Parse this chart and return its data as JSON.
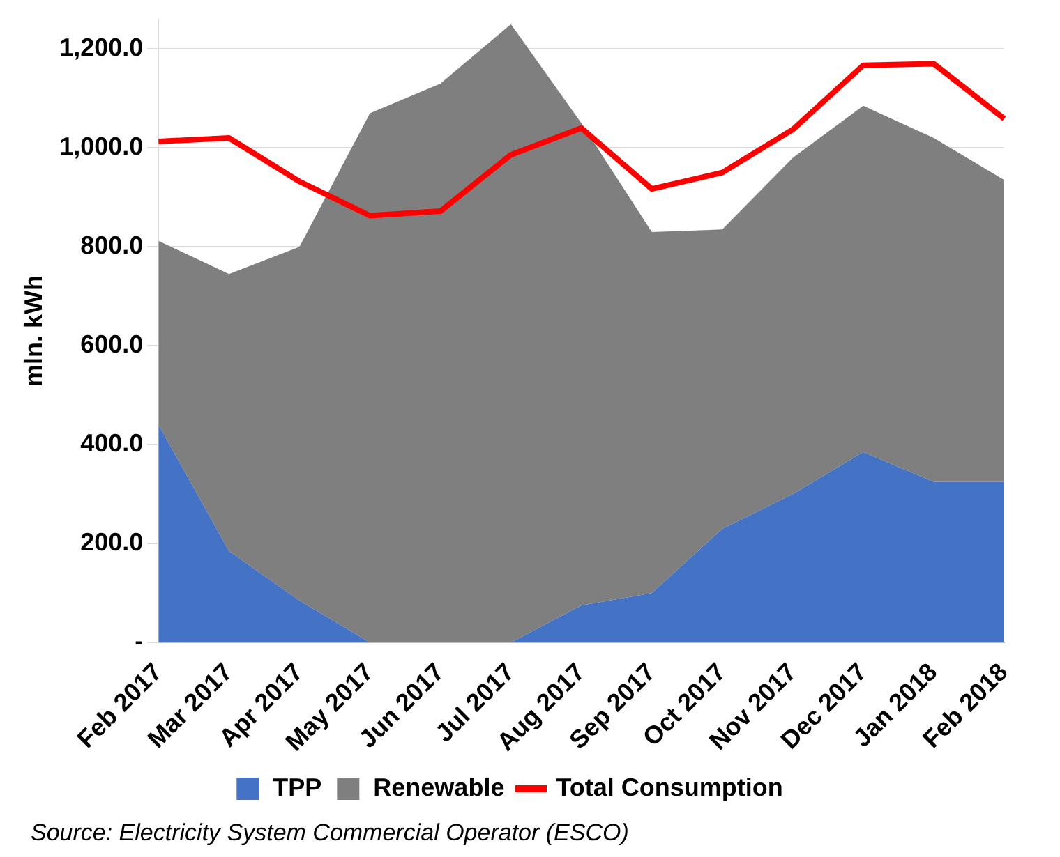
{
  "chart_data": {
    "type": "area",
    "ylabel": "mln. kWh",
    "stacked": true,
    "categories": [
      "Feb 2017",
      "Mar 2017",
      "Apr 2017",
      "May 2017",
      "Jun 2017",
      "Jul 2017",
      "Aug 2017",
      "Sep 2017",
      "Oct 2017",
      "Nov 2017",
      "Dec 2017",
      "Jan 2018",
      "Feb 2018"
    ],
    "series": [
      {
        "name": "TPP",
        "type": "area",
        "color": "#4472c4",
        "values": [
          440,
          185,
          85,
          0,
          0,
          0,
          75,
          100,
          230,
          300,
          385,
          325,
          325
        ]
      },
      {
        "name": "Renewable",
        "type": "area",
        "color": "#7f7f7f",
        "values": [
          372,
          560,
          715,
          1070,
          1130,
          1250,
          975,
          730,
          605,
          680,
          700,
          695,
          610
        ]
      },
      {
        "name": "Total Consumption",
        "type": "line",
        "color": "#ff0000",
        "values": [
          1013,
          1020,
          932,
          863,
          872,
          986,
          1040,
          917,
          950,
          1037,
          1167,
          1170,
          1059
        ]
      }
    ],
    "ylim": [
      0,
      1260
    ],
    "yticks": [
      {
        "value": 0,
        "label": "-"
      },
      {
        "value": 200,
        "label": "200.0"
      },
      {
        "value": 400,
        "label": "400.0"
      },
      {
        "value": 600,
        "label": "600.0"
      },
      {
        "value": 800,
        "label": "800.0"
      },
      {
        "value": 1000,
        "label": "1,000.0"
      },
      {
        "value": 1200,
        "label": "1,200.0"
      }
    ],
    "grid": "y",
    "legend": "bottom",
    "marker": "none",
    "line_style": "solid",
    "annotations": [
      "Source: Electricity System Commercial Operator (ESCO)"
    ]
  }
}
